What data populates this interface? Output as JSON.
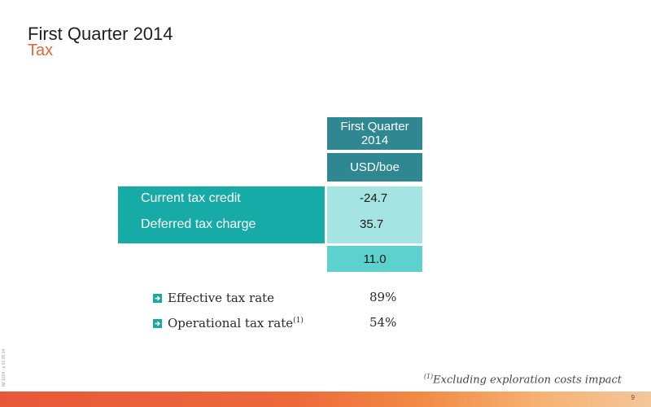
{
  "header": {
    "title": "First Quarter 2014",
    "subtitle": "Tax"
  },
  "table": {
    "column_header": [
      "First Quarter",
      "2014"
    ],
    "unit": "USD/boe",
    "rows": [
      {
        "label": "Current tax credit",
        "value": "-24.7"
      },
      {
        "label": "Deferred tax charge",
        "value": "35.7"
      }
    ],
    "total": "11.0"
  },
  "rates": [
    {
      "label": "Effective tax rate",
      "footnote_mark": "",
      "value": "89%"
    },
    {
      "label": "Operational tax rate",
      "footnote_mark": "(1)",
      "value": "54%"
    }
  ],
  "footnote": {
    "mark": "(1)",
    "text": "Excluding exploration costs impact"
  },
  "side_code": "IM 1014 · p 01  05.14",
  "page_number": "9",
  "colors": {
    "title": "#1f1f1f",
    "subtitle": "#e06a38",
    "header_teal": "#2f8791",
    "label_teal": "#16aba6",
    "value_light": "#a4e4e2",
    "total_mid": "#5dd1cd",
    "bottom_bar": "#e8573a"
  },
  "icons": {
    "bullet": "arrow-right-icon"
  }
}
